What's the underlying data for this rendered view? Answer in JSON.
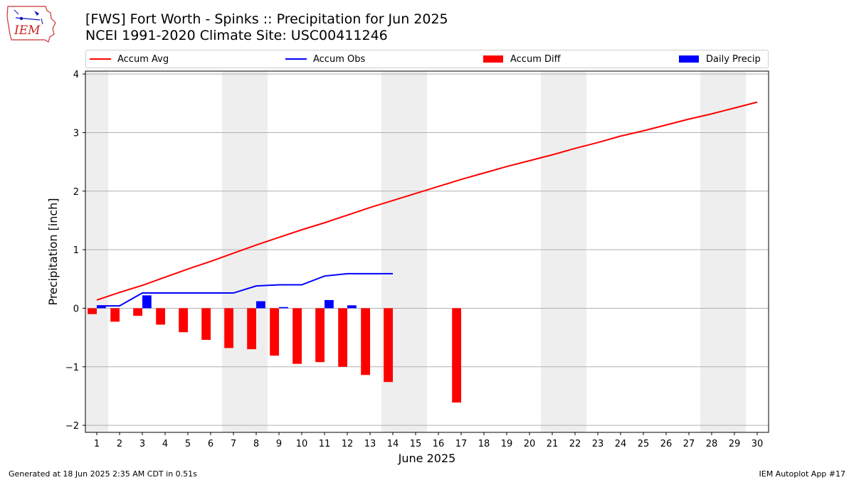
{
  "header": {
    "logo_text": "IEM",
    "title_line1": "[FWS] Fort Worth - Spinks :: Precipitation for Jun 2025",
    "title_line2": "NCEI 1991-2020 Climate Site: USC00411246"
  },
  "legend": {
    "accum_avg": "Accum Avg",
    "accum_obs": "Accum Obs",
    "accum_diff": "Accum Diff",
    "daily_precip": "Daily Precip"
  },
  "colors": {
    "accum_avg": "#ff0000",
    "accum_obs": "#0000ff",
    "accum_diff": "#ff0000",
    "daily_precip": "#0000ff",
    "weekend_shade": "#eeeeee",
    "grid": "#b0b0b0"
  },
  "footer": {
    "left": "Generated at 18 Jun 2025 2:35 AM CDT in 0.51s",
    "right": "IEM Autoplot App #17"
  },
  "chart_data": {
    "type": "bar",
    "xlabel": "June 2025",
    "ylabel": "Precipitation [inch]",
    "x": [
      1,
      2,
      3,
      4,
      5,
      6,
      7,
      8,
      9,
      10,
      11,
      12,
      13,
      14,
      15,
      16,
      17,
      18,
      19,
      20,
      21,
      22,
      23,
      24,
      25,
      26,
      27,
      28,
      29,
      30
    ],
    "xlim": [
      0.5,
      30.5
    ],
    "ylim": [
      -2.12,
      4.05
    ],
    "yticks": [
      -2,
      -1,
      0,
      1,
      2,
      3,
      4
    ],
    "ytick_labels": [
      "−2",
      "−1",
      "0",
      "1",
      "2",
      "3",
      "4"
    ],
    "grid": "horizontal",
    "legend_position": "top",
    "weekend_shading": [
      [
        0.5,
        1.5
      ],
      [
        6.5,
        8.5
      ],
      [
        13.5,
        15.5
      ],
      [
        20.5,
        22.5
      ],
      [
        27.5,
        29.5
      ]
    ],
    "series": [
      {
        "name": "Accum Avg",
        "kind": "line",
        "values": [
          0.14,
          0.27,
          0.39,
          0.53,
          0.67,
          0.8,
          0.94,
          1.08,
          1.21,
          1.34,
          1.46,
          1.59,
          1.72,
          1.84,
          1.96,
          2.08,
          2.2,
          2.31,
          2.42,
          2.52,
          2.62,
          2.73,
          2.83,
          2.94,
          3.03,
          3.13,
          3.23,
          3.32,
          3.42,
          3.52
        ]
      },
      {
        "name": "Accum Obs",
        "kind": "line",
        "values": [
          0.04,
          0.04,
          0.26,
          0.26,
          0.26,
          0.26,
          0.26,
          0.38,
          0.4,
          0.4,
          0.55,
          0.59,
          0.59,
          0.59,
          null,
          null,
          null,
          null,
          null,
          null,
          null,
          null,
          null,
          null,
          null,
          null,
          null,
          null,
          null,
          null
        ]
      },
      {
        "name": "Accum Diff",
        "kind": "bar",
        "values": [
          -0.1,
          -0.23,
          -0.13,
          -0.28,
          -0.41,
          -0.54,
          -0.68,
          -0.7,
          -0.81,
          -0.95,
          -0.92,
          -1.0,
          -1.14,
          -1.26,
          null,
          null,
          -1.61,
          null,
          null,
          null,
          null,
          null,
          null,
          null,
          null,
          null,
          null,
          null,
          null,
          null
        ]
      },
      {
        "name": "Daily Precip",
        "kind": "bar",
        "values": [
          0.04,
          0.0,
          0.22,
          0.0,
          0.0,
          0.0,
          0.0,
          0.12,
          0.02,
          0.0,
          0.14,
          0.05,
          0.0,
          0.0,
          null,
          null,
          null,
          null,
          null,
          null,
          null,
          null,
          null,
          null,
          null,
          null,
          null,
          null,
          null,
          null
        ]
      }
    ]
  }
}
